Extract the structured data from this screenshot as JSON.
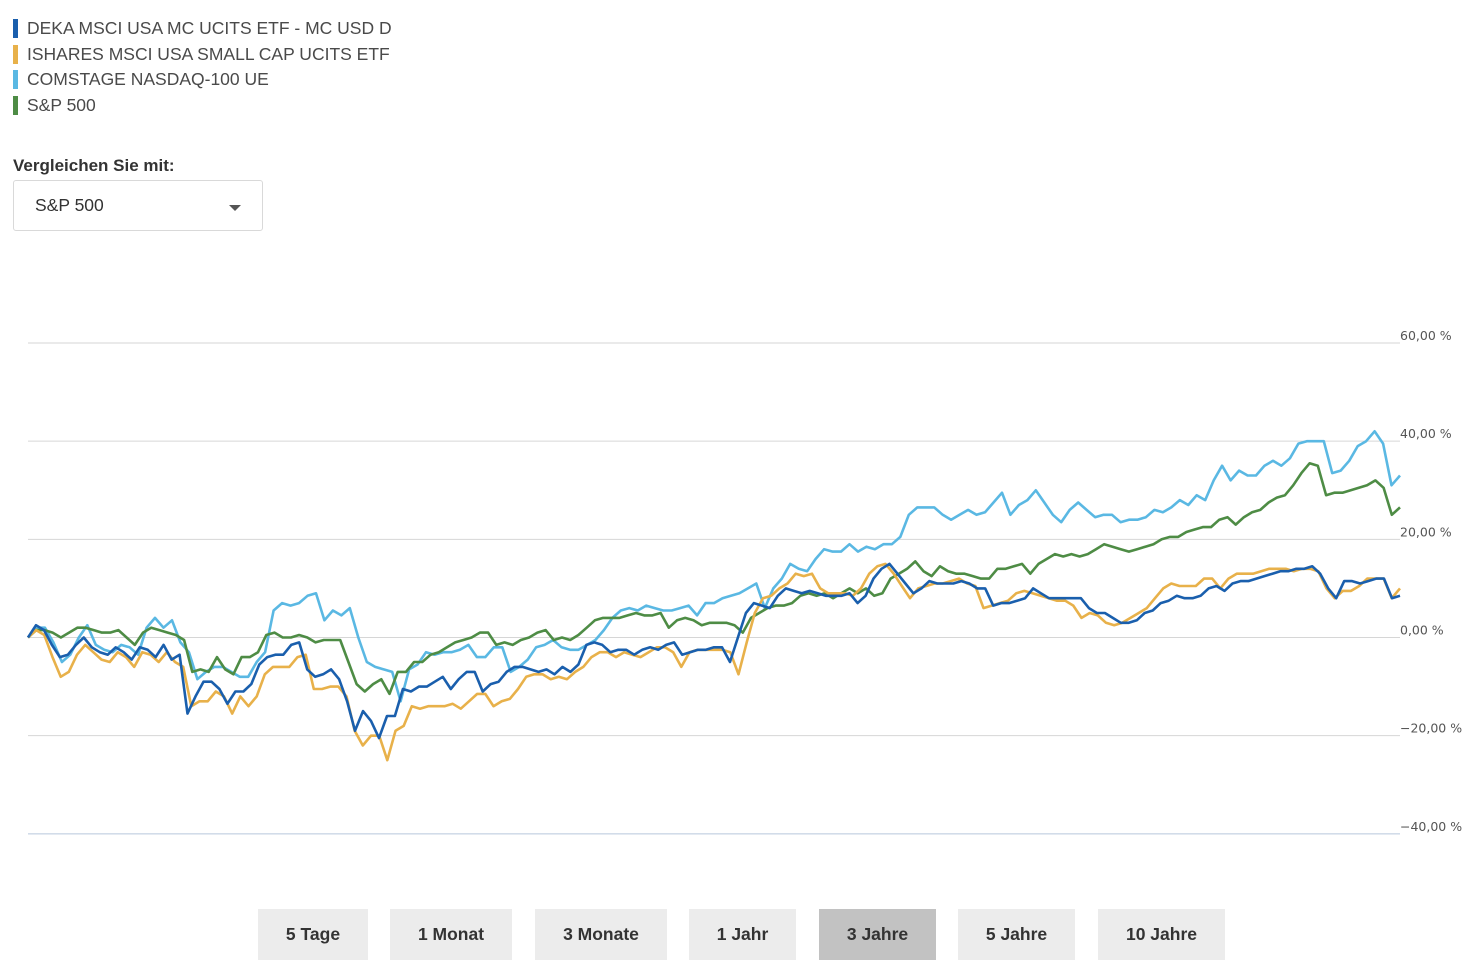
{
  "legend": [
    {
      "label": "DEKA MSCI USA MC UCITS ETF - MC USD D",
      "color": "#1a5fad"
    },
    {
      "label": "ISHARES MSCI USA SMALL CAP UCITS ETF",
      "color": "#e8b14a"
    },
    {
      "label": "COMSTAGE NASDAQ-100 UE",
      "color": "#5ab8e3"
    },
    {
      "label": "S&P 500",
      "color": "#4e8c45"
    }
  ],
  "compare": {
    "label": "Vergleichen Sie mit:",
    "selected": "S&P 500"
  },
  "range_buttons": [
    {
      "label": "5 Tage",
      "active": false
    },
    {
      "label": "1 Monat",
      "active": false
    },
    {
      "label": "3 Monate",
      "active": false
    },
    {
      "label": "1 Jahr",
      "active": false
    },
    {
      "label": "3 Jahre",
      "active": true
    },
    {
      "label": "5 Jahre",
      "active": false
    },
    {
      "label": "10 Jahre",
      "active": false
    }
  ],
  "chart_data": {
    "type": "line",
    "yticks": [
      "60,00 %",
      "40,00 %",
      "20,00 %",
      "0,00 %",
      "−20,00 %",
      "−40,00 %"
    ],
    "ytick_values": [
      60,
      40,
      20,
      0,
      -20,
      -40
    ],
    "ylim": [
      -40,
      60
    ],
    "grid": true,
    "legend_position": "top-left",
    "series": [
      {
        "name": "DEKA MSCI USA MC UCITS ETF - MC USD D",
        "color": "#1a5fad",
        "values": [
          0,
          2.5,
          1.5,
          -1.5,
          -4,
          -3.5,
          -1.5,
          0,
          -2,
          -3,
          -3.5,
          -2,
          -3,
          -4.5,
          -2,
          -2.5,
          -4,
          -1.5,
          -4.5,
          -3.5,
          -15.5,
          -12,
          -9,
          -9,
          -10.5,
          -13.5,
          -11,
          -11,
          -9.5,
          -5.5,
          -4,
          -3.5,
          -3.5,
          -1.5,
          -1,
          -6.5,
          -8,
          -7.5,
          -6.5,
          -8.5,
          -13,
          -19,
          -15,
          -17,
          -20.5,
          -16,
          -16,
          -10.5,
          -11,
          -10,
          -10,
          -9,
          -8,
          -10.5,
          -8.5,
          -7,
          -7,
          -11,
          -9.5,
          -9,
          -7,
          -6,
          -6,
          -6.5,
          -7,
          -6.5,
          -7.5,
          -6,
          -7,
          -5.5,
          -1.5,
          -1,
          -1.5,
          -3,
          -2.5,
          -2.5,
          -3.5,
          -2.5,
          -2,
          -2.5,
          -1.5,
          -1,
          -3.5,
          -3,
          -2.5,
          -2.5,
          -2,
          -2,
          -5,
          0,
          5,
          7,
          6.5,
          6,
          8.5,
          10,
          9.5,
          9,
          9.5,
          9,
          8.5,
          8.5,
          8.5,
          9,
          7,
          8.5,
          12,
          14,
          15,
          13,
          11,
          9,
          10,
          11.5,
          11,
          11,
          11,
          11.5,
          11,
          10,
          10,
          6.5,
          7,
          7,
          7.5,
          8,
          10,
          9,
          8,
          8,
          8,
          8,
          8,
          6,
          5,
          5,
          4,
          3,
          3,
          3.5,
          5,
          5.5,
          7,
          7.5,
          8.5,
          8,
          8,
          8.5,
          10,
          10.5,
          9.5,
          11,
          11.5,
          11.5,
          12,
          12.5,
          13,
          13.5,
          13.5,
          14,
          14,
          14.5,
          13,
          10,
          8,
          11.5,
          11.5,
          11,
          11.5,
          12,
          12,
          8,
          8.5
        ]
      },
      {
        "name": "ISHARES MSCI USA SMALL CAP UCITS ETF",
        "color": "#e8b14a",
        "values": [
          0,
          1.5,
          0.5,
          -4,
          -8,
          -7,
          -3.5,
          -1.5,
          -3,
          -4.5,
          -5,
          -3,
          -4,
          -6,
          -3,
          -3.5,
          -5,
          -3,
          -5,
          -6,
          -14,
          -13,
          -13,
          -11,
          -12,
          -15.5,
          -12,
          -14,
          -12,
          -7.5,
          -6,
          -6,
          -6,
          -4,
          -3.5,
          -10.5,
          -10.5,
          -10,
          -10,
          -12,
          -19,
          -22,
          -20,
          -20,
          -25,
          -19,
          -18,
          -14,
          -14.5,
          -14,
          -14,
          -14,
          -13.5,
          -14.5,
          -13,
          -11.5,
          -11.5,
          -14,
          -13,
          -12.5,
          -10.5,
          -8,
          -7.5,
          -7.5,
          -8.5,
          -8,
          -8.5,
          -7,
          -6,
          -4,
          -3,
          -3,
          -4,
          -3,
          -3.5,
          -4,
          -3,
          -2,
          -2,
          -3,
          -6,
          -3,
          -2.5,
          -2.5,
          -2.5,
          -2.5,
          -3,
          -7.5,
          -1,
          5,
          8,
          8.5,
          10,
          11,
          13,
          12.5,
          13,
          10,
          9,
          9,
          9,
          8.5,
          10,
          13,
          14.5,
          15,
          13,
          10.5,
          8,
          10,
          10.5,
          11,
          11,
          11.5,
          12,
          11,
          10.5,
          6,
          6.5,
          7,
          7.5,
          9,
          9.5,
          9,
          8.5,
          8,
          7.5,
          7.5,
          6.5,
          4,
          5,
          4.5,
          3,
          2.5,
          3,
          4,
          5,
          6,
          8,
          10,
          11,
          10.5,
          10.5,
          10.5,
          12,
          12,
          10,
          12,
          13,
          13,
          13,
          13.5,
          14,
          14,
          14,
          13.5,
          14,
          14,
          13.5,
          10,
          8,
          9.5,
          9.5,
          10.5,
          12,
          12,
          12,
          8,
          10
        ]
      },
      {
        "name": "COMSTAGE NASDAQ-100 UE",
        "color": "#5ab8e3",
        "values": [
          0,
          2,
          2,
          -1,
          -5,
          -3.5,
          0,
          2.5,
          -1.5,
          -2.5,
          -3,
          -1.5,
          -2,
          -3.5,
          2,
          4,
          2,
          3.5,
          -1,
          -3,
          -8.5,
          -7,
          -6,
          -6,
          -7,
          -8,
          -8,
          -5,
          -3,
          5.5,
          7,
          6.5,
          7,
          8.5,
          9,
          3.5,
          5.5,
          4.5,
          6,
          0,
          -5,
          -6,
          -6.5,
          -7,
          -13,
          -6.5,
          -5.5,
          -3,
          -3.5,
          -3,
          -3,
          -2.5,
          -1.5,
          -4,
          -4,
          -2,
          -2,
          -7,
          -6,
          -4.5,
          -2,
          -1.5,
          -0.5,
          -2,
          -2.5,
          -2.5,
          -1.5,
          -0.5,
          1.5,
          4,
          5.5,
          6,
          5.5,
          6.5,
          6,
          5.5,
          5.5,
          6,
          6.5,
          4.5,
          7,
          7,
          8,
          8.5,
          9,
          10,
          11,
          6,
          10,
          12,
          15,
          14,
          13.5,
          16,
          18,
          17.5,
          17.5,
          19,
          17.5,
          18.5,
          18,
          19,
          19,
          20.5,
          25,
          26.5,
          26.5,
          26.5,
          25,
          24,
          25,
          26,
          25,
          25.5,
          27.5,
          29.5,
          25,
          27,
          28,
          30,
          27.5,
          25,
          23.5,
          26,
          27.5,
          26,
          24.5,
          25,
          25,
          23.5,
          24,
          24,
          24.5,
          26,
          25.5,
          26.5,
          28,
          27,
          29,
          28,
          32,
          35,
          32,
          34,
          33,
          33,
          35,
          36,
          35,
          36.5,
          39.5,
          40,
          40,
          40,
          33.5,
          34,
          36,
          39,
          40,
          42,
          39.5,
          31,
          33
        ]
      },
      {
        "name": "S&P 500",
        "color": "#4e8c45",
        "values": [
          0,
          1.5,
          1.5,
          1,
          0,
          1,
          2,
          2,
          1.5,
          1,
          1,
          1.5,
          0,
          -1.5,
          1,
          2,
          1.5,
          1,
          0.5,
          -0.5,
          -7,
          -6.5,
          -7,
          -4,
          -6.5,
          -7.5,
          -4,
          -4,
          -3,
          0.5,
          1,
          0,
          0,
          0.5,
          0,
          -1,
          -0.5,
          -0.5,
          -0.5,
          -5,
          -9.5,
          -11,
          -9.5,
          -8.5,
          -11.5,
          -7,
          -7,
          -5,
          -5,
          -3.5,
          -3,
          -2,
          -1,
          -0.5,
          0,
          1,
          1,
          -1.5,
          -1,
          -1.5,
          -0.5,
          0,
          1,
          1.5,
          -0.5,
          0,
          -0.5,
          0.5,
          2,
          3.5,
          4,
          4,
          4,
          4.5,
          5,
          4.5,
          4.5,
          5,
          2,
          3.5,
          4,
          3.5,
          2.5,
          3,
          3,
          3,
          2.5,
          1,
          4,
          5,
          6,
          6.5,
          6.5,
          7,
          8.5,
          9,
          8.5,
          9,
          8,
          9,
          10,
          9,
          10,
          8.5,
          9,
          12,
          13,
          14,
          15.5,
          13.5,
          12.5,
          14.5,
          13.5,
          13,
          13,
          12.5,
          12,
          12,
          14,
          14,
          14.5,
          15,
          13,
          15,
          16,
          17,
          16.5,
          17,
          16.5,
          17,
          18,
          19,
          18.5,
          18,
          17.5,
          18,
          18.5,
          19,
          20,
          20.5,
          20.5,
          21.5,
          22,
          22.5,
          22.5,
          24,
          24.5,
          23,
          24.5,
          25.5,
          26,
          27.5,
          28.5,
          29,
          31,
          33.5,
          35.5,
          35,
          29,
          29.5,
          29.5,
          30,
          30.5,
          31,
          32,
          30.5,
          25,
          26.5
        ]
      }
    ]
  }
}
